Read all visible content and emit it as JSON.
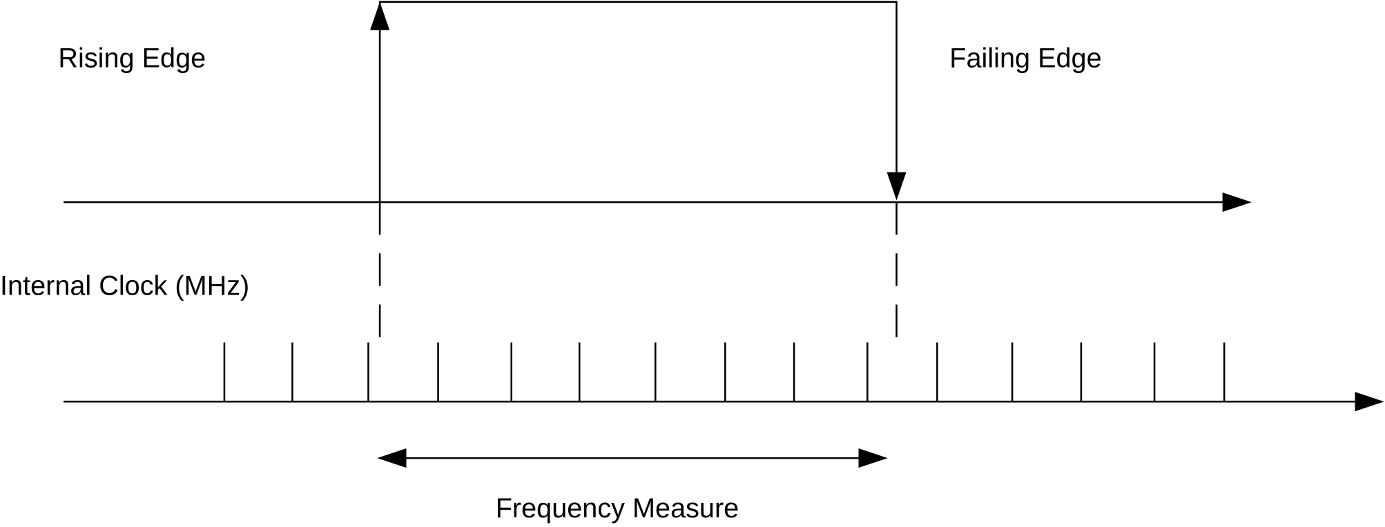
{
  "labels": {
    "rising_edge": "Rising Edge",
    "failing_edge": "Failing Edge",
    "internal_clock": "Internal Clock (MHz)",
    "frequency_measure": "Frequency Measure"
  }
}
